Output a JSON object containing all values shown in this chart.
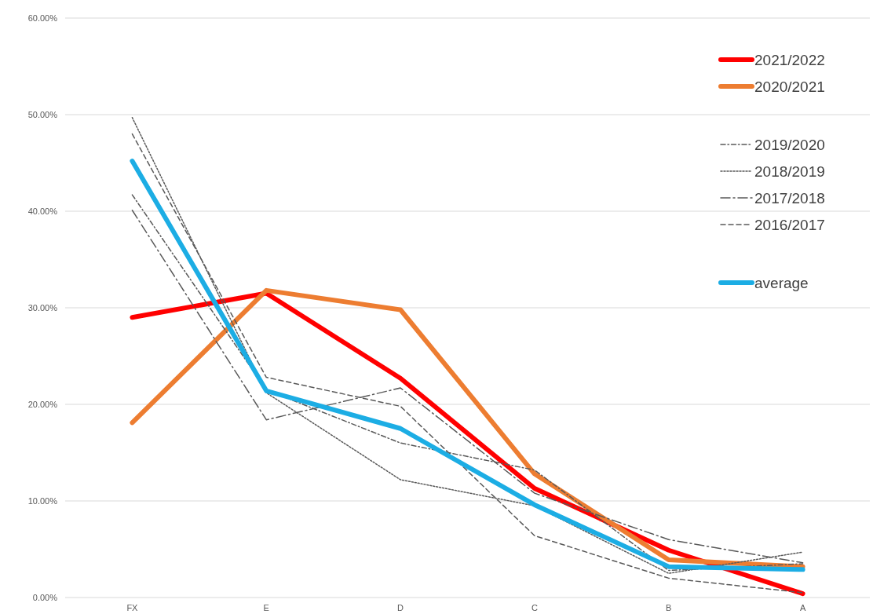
{
  "chart_data": {
    "type": "line",
    "categories": [
      "FX",
      "E",
      "D",
      "C",
      "B",
      "A"
    ],
    "ylim": [
      0,
      60
    ],
    "yticks": [
      {
        "value": 0,
        "label": "0.00%"
      },
      {
        "value": 10,
        "label": "10.00%"
      },
      {
        "value": 20,
        "label": "20.00%"
      },
      {
        "value": 30,
        "label": "30.00%"
      },
      {
        "value": 40,
        "label": "40.00%"
      },
      {
        "value": 50,
        "label": "50.00%"
      },
      {
        "value": 60,
        "label": "60.00%"
      }
    ],
    "grid": "y",
    "legend": "top right",
    "marker": "none",
    "series": [
      {
        "name": "2021/2022",
        "color": "#ff0000",
        "line_style": "solid",
        "values": [
          29.0,
          31.5,
          22.7,
          11.3,
          4.9,
          0.4
        ]
      },
      {
        "name": "2020/2021",
        "color": "#ed7d31",
        "line_style": "solid",
        "values": [
          18.1,
          31.8,
          29.8,
          12.8,
          3.9,
          3.2
        ]
      },
      {
        "name": "2019/2020",
        "color": "#595959",
        "line_style": "dashdot",
        "values": [
          41.7,
          21.5,
          16.0,
          13.2,
          2.8,
          3.5
        ]
      },
      {
        "name": "2018/2019",
        "color": "#595959",
        "line_style": "dotted",
        "values": [
          49.7,
          21.2,
          12.2,
          9.5,
          2.5,
          4.7
        ]
      },
      {
        "name": "2017/2018",
        "color": "#595959",
        "line_style": "longdashdot",
        "values": [
          40.1,
          18.4,
          21.7,
          10.8,
          6.0,
          3.6
        ]
      },
      {
        "name": "2016/2017",
        "color": "#595959",
        "line_style": "dashed",
        "values": [
          48.0,
          22.8,
          19.8,
          6.4,
          2.0,
          0.5
        ]
      },
      {
        "name": "average",
        "color": "#1cade4",
        "line_style": "solid",
        "values": [
          45.2,
          21.4,
          17.5,
          9.6,
          3.2,
          2.9
        ]
      }
    ]
  }
}
